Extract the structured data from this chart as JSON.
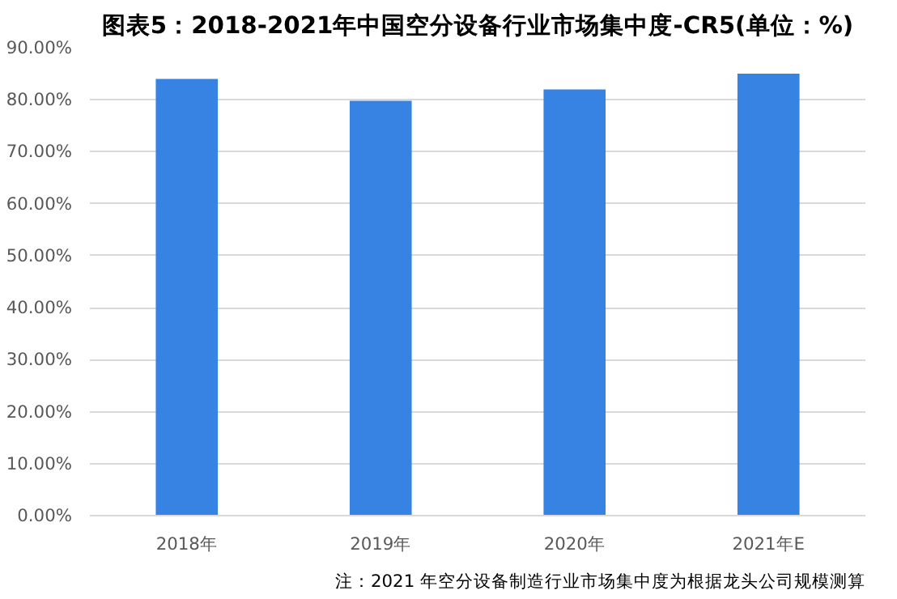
{
  "chart_data": {
    "type": "bar",
    "title": "图表5：2018-2021年中国空分设备行业市场集中度-CR5(单位：%)",
    "categories": [
      "2018年",
      "2019年",
      "2020年",
      "2021年E"
    ],
    "series": [
      {
        "color": "#3683e3",
        "values": [
          84,
          79.8,
          82,
          85
        ]
      }
    ],
    "ylim": [
      0,
      90
    ],
    "yticks": [
      {
        "value": 0,
        "label": "0.00%"
      },
      {
        "value": 10,
        "label": "10.00%"
      },
      {
        "value": 20,
        "label": "20.00%"
      },
      {
        "value": 30,
        "label": "30.00%"
      },
      {
        "value": 40,
        "label": "40.00%"
      },
      {
        "value": 50,
        "label": "50.00%"
      },
      {
        "value": 60,
        "label": "60.00%"
      },
      {
        "value": 70,
        "label": "70.00%"
      },
      {
        "value": 80,
        "label": "80.00%"
      },
      {
        "value": 90,
        "label": "90.00%"
      }
    ],
    "grid": "y",
    "annotations": [
      "注：2021 年空分设备制造行业市场集中度为根据龙头公司规模测算"
    ]
  }
}
